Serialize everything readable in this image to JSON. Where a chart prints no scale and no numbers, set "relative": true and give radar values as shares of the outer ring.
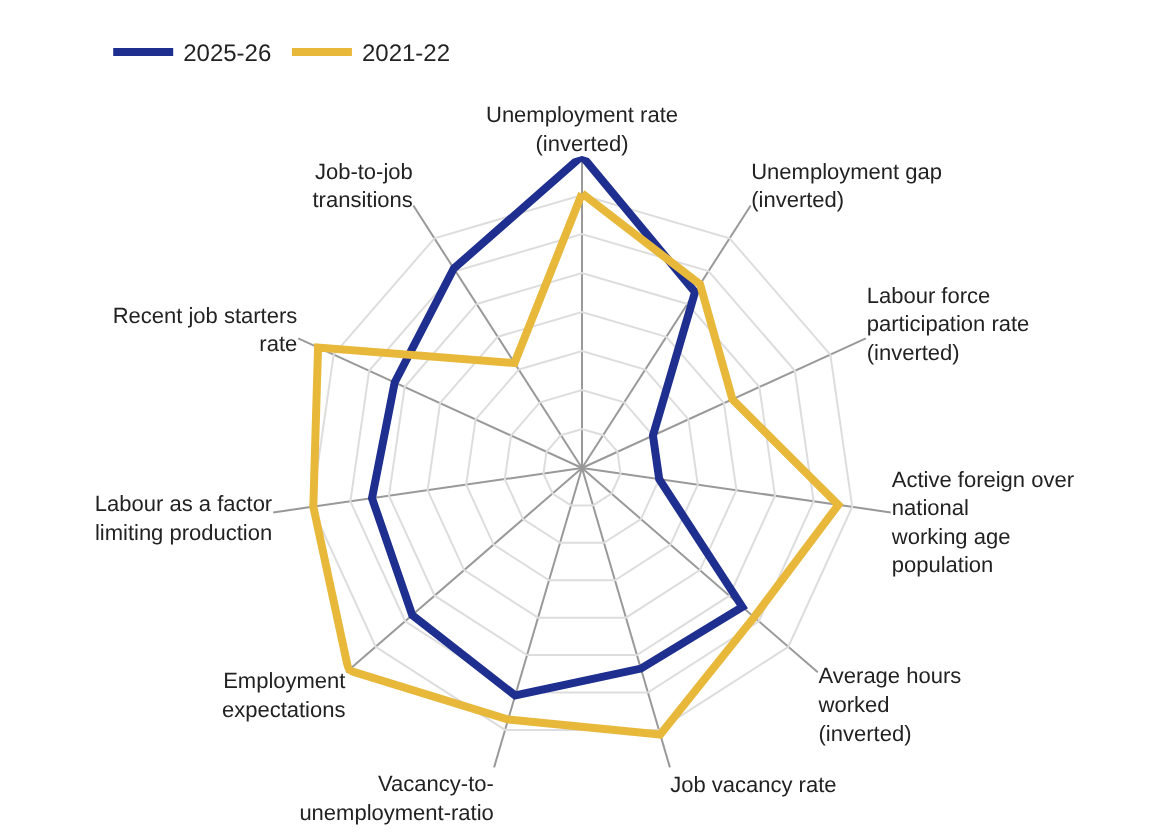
{
  "chart_data": {
    "type": "radar",
    "relative": true,
    "legend": "top left",
    "grid": true,
    "categories": [
      "Unemployment rate\n(inverted)",
      "Unemployment gap\n(inverted)",
      "Labour force\nparticipation rate\n(inverted)",
      "Active foreign over\nnational\nworking age\npopulation",
      "Average hours\nworked\n(inverted)",
      "Job vacancy rate",
      "Vacancy-to-\nunemployment-ratio",
      "Employment\nexpectations",
      "Labour as a factor\nlimiting production",
      "Recent job starters\nrate",
      "Job-to-job\ntransitions"
    ],
    "series": [
      {
        "name": "2025-26",
        "color": "#1f2f8f",
        "values": [
          1.0,
          0.67,
          0.25,
          0.25,
          0.68,
          0.67,
          0.76,
          0.72,
          0.68,
          0.66,
          0.76
        ]
      },
      {
        "name": "2021-22",
        "color": "#e8b83a",
        "values": [
          0.88,
          0.7,
          0.53,
          0.83,
          0.73,
          0.89,
          0.84,
          0.99,
          0.87,
          0.93,
          0.4
        ]
      }
    ]
  }
}
